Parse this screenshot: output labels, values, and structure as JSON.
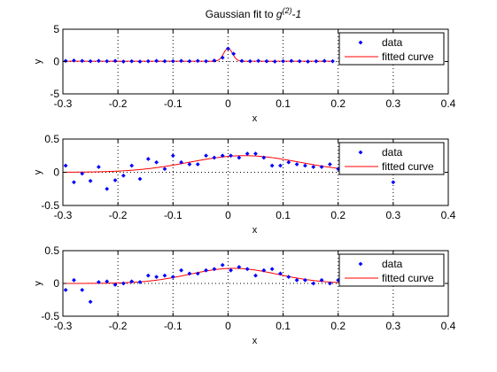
{
  "figure": {
    "title_main": "Gaussian fit to ",
    "title_g": "g",
    "title_sup": "(2)",
    "title_tail": "-1"
  },
  "colors": {
    "data": "#0000ff",
    "fit": "#ff0000",
    "axes": "#000000",
    "background": "#ffffff",
    "grid": "#000000"
  },
  "chart_data": [
    {
      "type": "scatter",
      "title": "Gaussian fit to g(2)-1",
      "xlabel": "x",
      "ylabel": "y",
      "xlim": [
        -0.3,
        0.4
      ],
      "ylim": [
        -5,
        5
      ],
      "xticks": [
        -0.3,
        -0.2,
        -0.1,
        0,
        0.1,
        0.2,
        0.3,
        0.4
      ],
      "yticks": [
        -5,
        0,
        5
      ],
      "xtick_labels": [
        "-0.3",
        "-0.2",
        "-0.1",
        "0",
        "0.1",
        "0.2",
        "0.3",
        "0.4"
      ],
      "ytick_labels": [
        "-5",
        "0",
        "5"
      ],
      "grid": "dotted",
      "legend": {
        "placement": "top-right",
        "entries": [
          "data",
          "fitted curve"
        ]
      },
      "series": [
        {
          "name": "data",
          "mode": "markers",
          "x": [
            -0.295,
            -0.28,
            -0.265,
            -0.25,
            -0.235,
            -0.22,
            -0.205,
            -0.19,
            -0.175,
            -0.16,
            -0.145,
            -0.13,
            -0.115,
            -0.1,
            -0.085,
            -0.07,
            -0.055,
            -0.04,
            -0.025,
            -0.01,
            0.0,
            0.01,
            0.025,
            0.04,
            0.055,
            0.07,
            0.085,
            0.1,
            0.115,
            0.13,
            0.145,
            0.16,
            0.175,
            0.19
          ],
          "y": [
            0.1,
            0.15,
            0.1,
            0.05,
            0.1,
            0.05,
            0.1,
            0.0,
            0.05,
            0.0,
            0.05,
            0.1,
            0.05,
            0.05,
            0.1,
            0.05,
            0.1,
            0.05,
            0.15,
            0.6,
            2.0,
            1.2,
            0.1,
            0.05,
            0.1,
            0.05,
            0.0,
            0.05,
            0.1,
            0.05,
            0.0,
            0.05,
            0.1,
            0.05
          ]
        },
        {
          "name": "fitted curve",
          "mode": "line",
          "model": "gaussian",
          "params": {
            "amplitude": 2.0,
            "center": 0.0,
            "sigma": 0.008,
            "offset": 0.05
          }
        }
      ]
    },
    {
      "type": "scatter",
      "xlabel": "x",
      "ylabel": "y",
      "xlim": [
        -0.3,
        0.4
      ],
      "ylim": [
        -0.5,
        0.5
      ],
      "xticks": [
        -0.3,
        -0.2,
        -0.1,
        0,
        0.1,
        0.2,
        0.3,
        0.4
      ],
      "yticks": [
        -0.5,
        0,
        0.5
      ],
      "xtick_labels": [
        "-0.3",
        "-0.2",
        "-0.1",
        "0",
        "0.1",
        "0.2",
        "0.3",
        "0.4"
      ],
      "ytick_labels": [
        "-0.5",
        "0",
        "0.5"
      ],
      "grid": "dotted",
      "legend": {
        "placement": "top-right",
        "entries": [
          "data",
          "fitted curve"
        ]
      },
      "series": [
        {
          "name": "data",
          "mode": "markers",
          "x": [
            -0.295,
            -0.28,
            -0.265,
            -0.25,
            -0.235,
            -0.22,
            -0.205,
            -0.19,
            -0.175,
            -0.16,
            -0.145,
            -0.13,
            -0.115,
            -0.1,
            -0.085,
            -0.07,
            -0.055,
            -0.04,
            -0.025,
            -0.01,
            0.005,
            0.02,
            0.035,
            0.05,
            0.065,
            0.08,
            0.095,
            0.11,
            0.125,
            0.14,
            0.155,
            0.17,
            0.185,
            0.2,
            0.3
          ],
          "y": [
            0.1,
            -0.15,
            -0.02,
            -0.13,
            0.08,
            -0.25,
            -0.12,
            -0.05,
            0.1,
            -0.1,
            0.2,
            0.15,
            0.05,
            0.25,
            0.15,
            0.12,
            0.12,
            0.25,
            0.22,
            0.25,
            0.25,
            0.22,
            0.28,
            0.28,
            0.22,
            0.1,
            0.1,
            0.15,
            0.12,
            0.1,
            0.08,
            0.08,
            0.12,
            0.05,
            -0.15
          ]
        },
        {
          "name": "fitted curve",
          "mode": "line",
          "model": "gaussian",
          "params": {
            "amplitude": 0.25,
            "center": 0.03,
            "sigma": 0.1,
            "offset": 0.0
          }
        }
      ]
    },
    {
      "type": "scatter",
      "xlabel": "x",
      "ylabel": "y",
      "xlim": [
        -0.3,
        0.4
      ],
      "ylim": [
        -0.5,
        0.5
      ],
      "xticks": [
        -0.3,
        -0.2,
        -0.1,
        0,
        0.1,
        0.2,
        0.3,
        0.4
      ],
      "yticks": [
        -0.5,
        0,
        0.5
      ],
      "xtick_labels": [
        "-0.3",
        "-0.2",
        "-0.1",
        "0",
        "0.1",
        "0.2",
        "0.3",
        "0.4"
      ],
      "ytick_labels": [
        "-0.5",
        "0",
        "0.5"
      ],
      "grid": "dotted",
      "legend": {
        "placement": "top-right",
        "entries": [
          "data",
          "fitted curve"
        ]
      },
      "series": [
        {
          "name": "data",
          "mode": "markers",
          "x": [
            -0.295,
            -0.28,
            -0.265,
            -0.25,
            -0.235,
            -0.22,
            -0.205,
            -0.19,
            -0.175,
            -0.16,
            -0.145,
            -0.13,
            -0.115,
            -0.1,
            -0.085,
            -0.07,
            -0.055,
            -0.04,
            -0.025,
            -0.01,
            0.005,
            0.02,
            0.035,
            0.05,
            0.065,
            0.08,
            0.095,
            0.11,
            0.125,
            0.14,
            0.155,
            0.17,
            0.185,
            0.2
          ],
          "y": [
            -0.1,
            0.05,
            -0.1,
            -0.28,
            0.02,
            0.03,
            -0.02,
            0.0,
            0.03,
            0.02,
            0.12,
            0.1,
            0.12,
            0.1,
            0.2,
            0.15,
            0.15,
            0.2,
            0.22,
            0.28,
            0.2,
            0.25,
            0.22,
            0.12,
            0.2,
            0.22,
            0.15,
            0.1,
            0.05,
            0.05,
            0.0,
            0.05,
            0.0,
            0.05
          ]
        },
        {
          "name": "fitted curve",
          "mode": "line",
          "model": "gaussian",
          "params": {
            "amplitude": 0.23,
            "center": 0.01,
            "sigma": 0.08,
            "offset": 0.0
          }
        }
      ]
    }
  ]
}
